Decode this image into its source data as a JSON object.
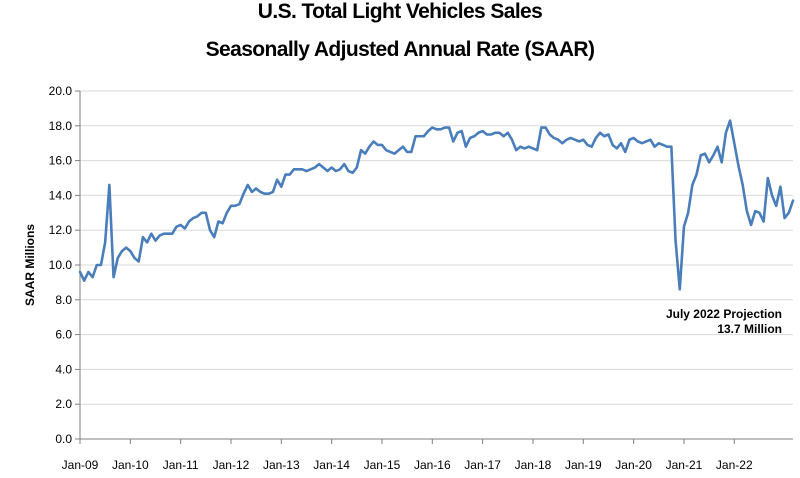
{
  "chart_data": {
    "type": "line",
    "title": "U.S. Total Light Vehicles Sales",
    "subtitle": "Seasonally Adjusted Annual Rate (SAAR)",
    "xlabel": "",
    "ylabel": "SAAR Millions",
    "ylim": [
      0,
      20
    ],
    "yticks": [
      "0.0",
      "2.0",
      "4.0",
      "6.0",
      "8.0",
      "10.0",
      "12.0",
      "14.0",
      "16.0",
      "18.0",
      "20.0"
    ],
    "xticks": [
      "Jan-09",
      "Jan-10",
      "Jan-11",
      "Jan-12",
      "Jan-13",
      "Jan-14",
      "Jan-15",
      "Jan-16",
      "Jan-17",
      "Jan-18",
      "Jan-19",
      "Jan-20",
      "Jan-21",
      "Jan-22"
    ],
    "x_start": "Jan-09",
    "x_end": "Jul-22",
    "grid": "horizontal",
    "line_color": "#4a7ebb",
    "annotation": {
      "line1": "July 2022 Projection",
      "line2": "13.7 Million"
    },
    "series": [
      {
        "name": "",
        "values": [
          9.6,
          9.1,
          9.6,
          9.3,
          10.0,
          10.0,
          11.3,
          14.6,
          9.3,
          10.4,
          10.8,
          11.0,
          10.8,
          10.4,
          10.2,
          11.6,
          11.3,
          11.8,
          11.4,
          11.7,
          11.8,
          11.8,
          11.8,
          12.2,
          12.3,
          12.1,
          12.5,
          12.7,
          12.8,
          13.0,
          13.0,
          12.0,
          11.6,
          12.5,
          12.4,
          13.0,
          13.4,
          13.4,
          13.5,
          14.1,
          14.6,
          14.2,
          14.4,
          14.2,
          14.1,
          14.1,
          14.2,
          14.9,
          14.5,
          15.2,
          15.2,
          15.5,
          15.5,
          15.5,
          15.4,
          15.5,
          15.6,
          15.8,
          15.6,
          15.4,
          15.6,
          15.4,
          15.5,
          15.8,
          15.4,
          15.3,
          15.6,
          16.6,
          16.4,
          16.8,
          17.1,
          16.9,
          16.9,
          16.6,
          16.5,
          16.4,
          16.6,
          16.8,
          16.5,
          16.5,
          17.4,
          17.4,
          17.4,
          17.7,
          17.9,
          17.8,
          17.8,
          17.9,
          17.9,
          17.1,
          17.6,
          17.7,
          16.8,
          17.3,
          17.4,
          17.6,
          17.7,
          17.5,
          17.5,
          17.6,
          17.6,
          17.4,
          17.6,
          17.2,
          16.6,
          16.8,
          16.7,
          16.8,
          16.7,
          16.6,
          17.9,
          17.9,
          17.5,
          17.3,
          17.2,
          17.0,
          17.2,
          17.3,
          17.2,
          17.1,
          17.2,
          16.9,
          16.8,
          17.3,
          17.6,
          17.4,
          17.5,
          16.9,
          16.7,
          17.0,
          16.5,
          17.2,
          17.3,
          17.1,
          17.0,
          17.1,
          17.2,
          16.8,
          17.0,
          16.9,
          16.8,
          16.8,
          11.4,
          8.6,
          12.2,
          13.0,
          14.6,
          15.2,
          16.3,
          16.4,
          15.9,
          16.3,
          16.8,
          15.9,
          17.6,
          18.3,
          17.0,
          15.7,
          14.6,
          13.1,
          12.3,
          13.1,
          13.0,
          12.5,
          15.0,
          14.0,
          13.4,
          14.5,
          12.7,
          13.0,
          13.7
        ]
      }
    ]
  }
}
